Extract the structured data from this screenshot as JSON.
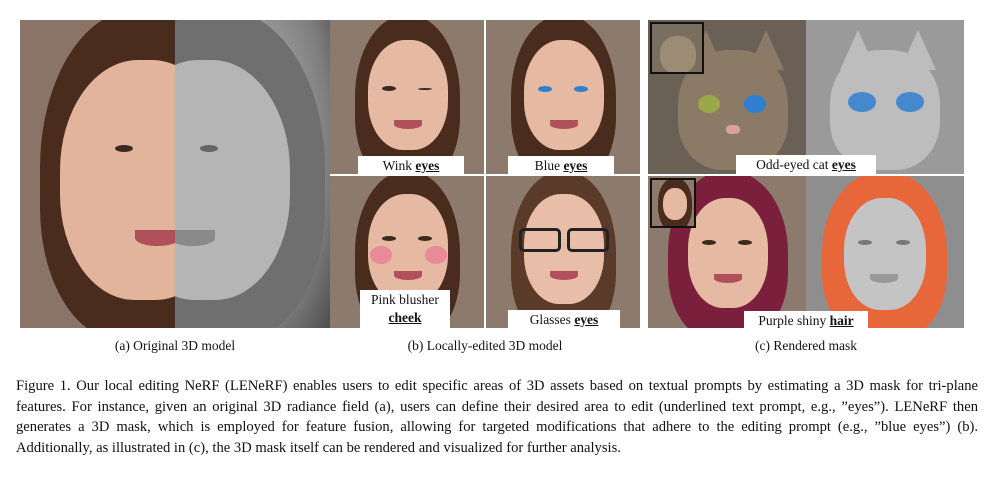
{
  "panels": {
    "a": {
      "caption": "(a) Original 3D model"
    },
    "b": {
      "caption": "(b) Locally-edited 3D model",
      "tiles": [
        {
          "text": "Wink ",
          "underlined": "eyes"
        },
        {
          "text": "Blue ",
          "underlined": "eyes"
        },
        {
          "text": "Pink blusher",
          "underlined": "cheek"
        },
        {
          "text": "Glasses ",
          "underlined": "eyes"
        }
      ]
    },
    "c": {
      "caption": "(c) Rendered mask",
      "rows": [
        {
          "text": "Odd-eyed cat ",
          "underlined": "eyes"
        },
        {
          "text": "Purple shiny ",
          "underlined": "hair"
        }
      ]
    }
  },
  "figure_caption": "Figure 1. Our local editing NeRF (LENeRF) enables users to edit specific areas of 3D assets based on textual prompts by estimating a 3D mask for tri-plane features. For instance, given an original 3D radiance field (a), users can define their desired area to edit (underlined text prompt, e.g., ”eyes”). LENeRF then generates a 3D mask, which is employed for feature fusion, allowing for targeted modifications that adhere to the editing prompt (e.g., ”blue eyes”) (b). Additionally, as illustrated in (c), the 3D mask itself can be rendered and visualized for further analysis.",
  "colors": {
    "skin": "#e6b9a2",
    "hair_brown": "#4a2c1e",
    "mask_grey": "#a9a9a9",
    "blue_eye": "#2f7fd0",
    "blush": "#e88a98",
    "purple_hair": "#7a1f3c",
    "mask_orange": "#e8673a",
    "cat_fur": "#8a7a66"
  }
}
